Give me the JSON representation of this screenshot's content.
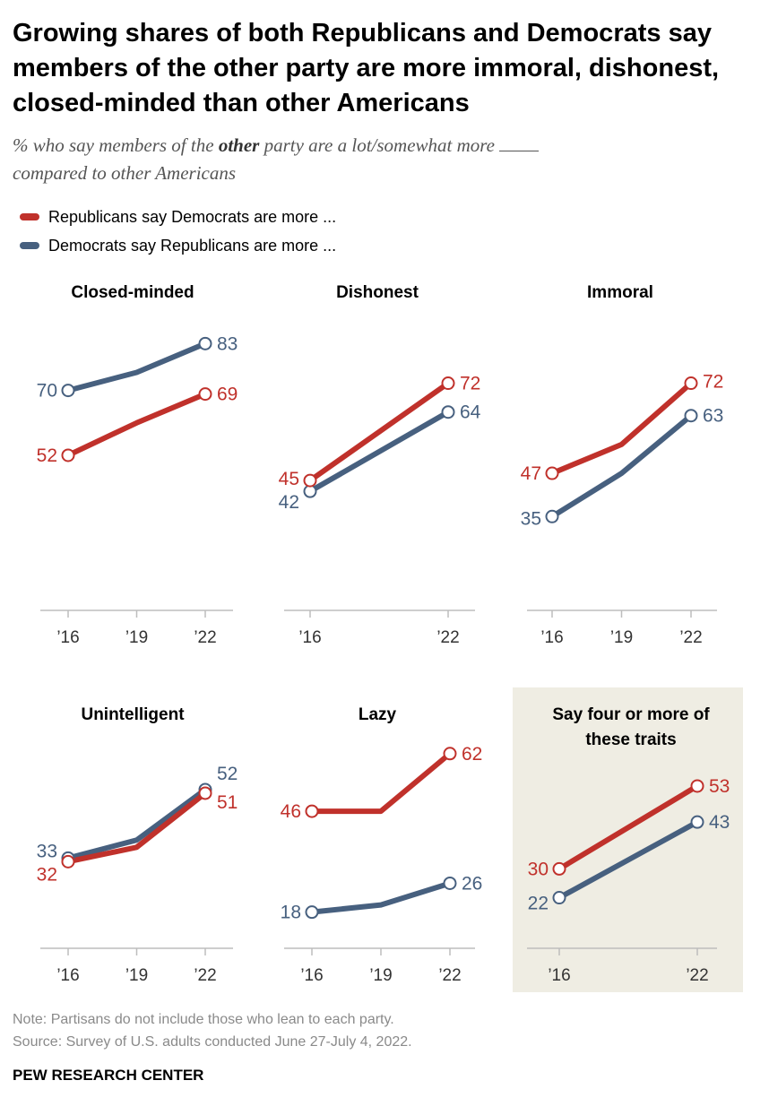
{
  "title": "Growing shares of both Republicans and Democrats say members of the other party are more immoral, dishonest, closed-minded than other Americans",
  "subtitle": {
    "part1": "% who say members of the ",
    "emphasis": "other",
    "part2": " party are a lot/somewhat more ",
    "part3": " compared to other Americans"
  },
  "legend": [
    {
      "label": "Republicans say Democrats are more ...",
      "color": "#c0312b"
    },
    {
      "label": "Democrats say Republicans are more ...",
      "color": "#47607f"
    }
  ],
  "colors": {
    "rep": "#c0312b",
    "dem": "#47607f",
    "axis": "#bdbdbd",
    "highlight_bg": "#efede3"
  },
  "chart_data": [
    {
      "type": "line",
      "title": "Closed-minded",
      "x": [
        2016,
        2019,
        2022
      ],
      "tick_labels": [
        "’16",
        "’19",
        "’22"
      ],
      "ylim": [
        0,
        100
      ],
      "series": [
        {
          "name": "Republicans say Democrats are more ...",
          "values": [
            52,
            61,
            69
          ],
          "labels": [
            "52",
            "",
            "69"
          ]
        },
        {
          "name": "Democrats say Republicans are more ...",
          "values": [
            70,
            75,
            83
          ],
          "labels": [
            "70",
            "",
            "83"
          ]
        }
      ]
    },
    {
      "type": "line",
      "title": "Dishonest",
      "x": [
        2016,
        2022
      ],
      "tick_labels": [
        "’16",
        "’22"
      ],
      "ylim": [
        0,
        100
      ],
      "series": [
        {
          "name": "Republicans say Democrats are more ...",
          "values": [
            45,
            72
          ],
          "labels": [
            "45",
            "72"
          ]
        },
        {
          "name": "Democrats say Republicans are more ...",
          "values": [
            42,
            64
          ],
          "labels": [
            "42",
            "64"
          ]
        }
      ]
    },
    {
      "type": "line",
      "title": "Immoral",
      "x": [
        2016,
        2019,
        2022
      ],
      "tick_labels": [
        "’16",
        "’19",
        "’22"
      ],
      "ylim": [
        0,
        100
      ],
      "series": [
        {
          "name": "Republicans say Democrats are more ...",
          "values": [
            47,
            55,
            72
          ],
          "labels": [
            "47",
            "",
            "72"
          ]
        },
        {
          "name": "Democrats say Republicans are more ...",
          "values": [
            35,
            47,
            63
          ],
          "labels": [
            "35",
            "",
            "63"
          ]
        }
      ]
    },
    {
      "type": "line",
      "title": "Unintelligent",
      "x": [
        2016,
        2019,
        2022
      ],
      "tick_labels": [
        "’16",
        "’19",
        "’22"
      ],
      "ylim": [
        0,
        100
      ],
      "series": [
        {
          "name": "Republicans say Democrats are more ...",
          "values": [
            32,
            36,
            51
          ],
          "labels": [
            "32",
            "",
            "51"
          ]
        },
        {
          "name": "Democrats say Republicans are more ...",
          "values": [
            33,
            38,
            52
          ],
          "labels": [
            "33",
            "",
            "52"
          ]
        }
      ]
    },
    {
      "type": "line",
      "title": "Lazy",
      "x": [
        2016,
        2019,
        2022
      ],
      "tick_labels": [
        "’16",
        "’19",
        "’22"
      ],
      "ylim": [
        0,
        100
      ],
      "series": [
        {
          "name": "Republicans say Democrats are more ...",
          "values": [
            46,
            46,
            62
          ],
          "labels": [
            "46",
            "",
            "62"
          ]
        },
        {
          "name": "Democrats say Republicans are more ...",
          "values": [
            18,
            20,
            26
          ],
          "labels": [
            "18",
            "",
            "26"
          ]
        }
      ]
    },
    {
      "type": "line",
      "title": "Say four or more of these traits",
      "x": [
        2016,
        2022
      ],
      "tick_labels": [
        "’16",
        "’22"
      ],
      "ylim": [
        0,
        100
      ],
      "highlighted": true,
      "series": [
        {
          "name": "Republicans say Democrats are more ...",
          "values": [
            30,
            53
          ],
          "labels": [
            "30",
            "53"
          ]
        },
        {
          "name": "Democrats say Republicans are more ...",
          "values": [
            22,
            43
          ],
          "labels": [
            "22",
            "43"
          ]
        }
      ]
    }
  ],
  "footer": {
    "note": "Note: Partisans do not include those who lean to each party.",
    "source": "Source: Survey of U.S. adults conducted June 27-July 4, 2022."
  },
  "brand": "PEW RESEARCH CENTER"
}
